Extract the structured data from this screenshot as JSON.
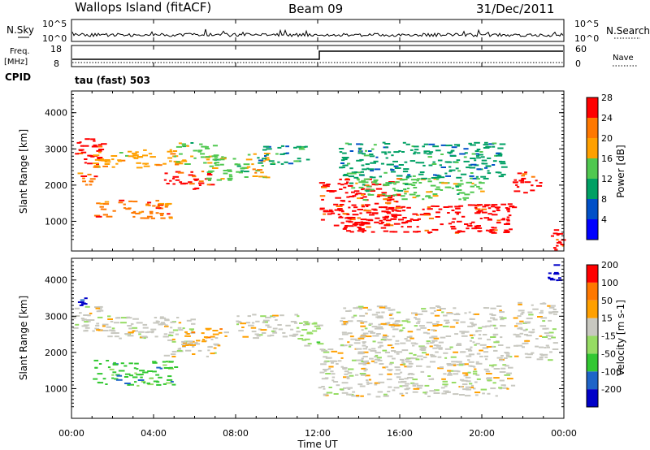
{
  "header": {
    "station": "Wallops Island (fitACF)",
    "beam": "Beam 09",
    "date": "31/Dec/2011"
  },
  "noise_panel": {
    "left_label": "N.Sky",
    "right_label": "N.Search",
    "left_ticks": [
      "10^5",
      "10^0"
    ],
    "right_ticks": [
      "10^5",
      "10^0"
    ]
  },
  "freq_panel": {
    "left_label_top": "Freq.",
    "left_label_unit": "[MHz]",
    "cpid_label": "CPID",
    "right_label": "Nave",
    "left_ticks": [
      "18",
      "8"
    ],
    "right_ticks": [
      "60",
      "0"
    ],
    "cpid_text": "tau (fast) 503"
  },
  "time_axis": {
    "label": "Time UT",
    "ticks": [
      "00:00",
      "04:00",
      "08:00",
      "12:00",
      "16:00",
      "20:00",
      "00:00"
    ]
  },
  "chart_data": [
    {
      "type": "heatmap",
      "name": "power",
      "ylabel": "Slant Range [km]",
      "x_range_hours": [
        0,
        24
      ],
      "ylim": [
        180,
        4600
      ],
      "y_ticks": [
        1000,
        2000,
        3000,
        4000
      ],
      "colorbar_label": "Power [dB]",
      "colorbar_ticks": [
        "28",
        "24",
        "20",
        "16",
        "12",
        "8",
        "4"
      ],
      "colorbar_colors": [
        "#0000ff",
        "#0050c8",
        "#00a064",
        "#50c850",
        "#ffa000",
        "#ff7800",
        "#ff0000"
      ],
      "regions": [
        {
          "t0": 0.0,
          "t1": 1.5,
          "r0": 2600,
          "r1": 3300,
          "c": 6
        },
        {
          "t0": 0.2,
          "t1": 1.2,
          "r0": 2000,
          "r1": 2400,
          "c": 5
        },
        {
          "t0": 1.0,
          "t1": 5.0,
          "r0": 1100,
          "r1": 1600,
          "c": 5
        },
        {
          "t0": 1.0,
          "t1": 5.5,
          "r0": 2500,
          "r1": 3000,
          "c": 4
        },
        {
          "t0": 4.5,
          "t1": 7.0,
          "r0": 1900,
          "r1": 2400,
          "c": 6
        },
        {
          "t0": 5.0,
          "t1": 7.0,
          "r0": 2600,
          "r1": 3200,
          "c": 3
        },
        {
          "t0": 6.5,
          "t1": 8.5,
          "r0": 2100,
          "r1": 2800,
          "c": 3
        },
        {
          "t0": 8.5,
          "t1": 9.5,
          "r0": 2200,
          "r1": 2900,
          "c": 4
        },
        {
          "t0": 9.0,
          "t1": 11.5,
          "r0": 2600,
          "r1": 3100,
          "c": 2
        },
        {
          "t0": 12.0,
          "t1": 16.0,
          "r0": 900,
          "r1": 2200,
          "c": 6
        },
        {
          "t0": 13.0,
          "t1": 21.5,
          "r0": 700,
          "r1": 1500,
          "c": 6
        },
        {
          "t0": 13.5,
          "t1": 20.0,
          "r0": 1600,
          "r1": 2200,
          "c": 3
        },
        {
          "t0": 13.0,
          "t1": 21.0,
          "r0": 2200,
          "r1": 3200,
          "c": 2
        },
        {
          "t0": 21.5,
          "t1": 22.8,
          "r0": 1800,
          "r1": 2400,
          "c": 6
        },
        {
          "t0": 23.3,
          "t1": 24.0,
          "r0": 200,
          "r1": 1000,
          "c": 6
        }
      ]
    },
    {
      "type": "heatmap",
      "name": "velocity",
      "ylabel": "Slant Range [km]",
      "x_range_hours": [
        0,
        24
      ],
      "ylim": [
        180,
        4600
      ],
      "y_ticks": [
        1000,
        2000,
        3000,
        4000
      ],
      "colorbar_label": "Velocity [m s-1]",
      "colorbar_ticks": [
        "200",
        "100",
        "50",
        "15",
        "-15",
        "-50",
        "-100",
        "-200"
      ],
      "colorbar_colors": [
        "#0000c8",
        "#1e64c8",
        "#32c832",
        "#96dc64",
        "#c8c8c0",
        "#ffa000",
        "#ff7800",
        "#ff0000"
      ],
      "regions": [
        {
          "t0": 0.0,
          "t1": 2.0,
          "r0": 2600,
          "r1": 3300,
          "c": 4
        },
        {
          "t0": 0.2,
          "t1": 0.7,
          "r0": 3300,
          "r1": 3700,
          "c": 0
        },
        {
          "t0": 1.0,
          "t1": 5.0,
          "r0": 1100,
          "r1": 1800,
          "c": 2
        },
        {
          "t0": 1.0,
          "t1": 6.0,
          "r0": 2400,
          "r1": 3000,
          "c": 4
        },
        {
          "t0": 4.5,
          "t1": 7.0,
          "r0": 1900,
          "r1": 2400,
          "c": 4
        },
        {
          "t0": 5.5,
          "t1": 7.5,
          "r0": 2200,
          "r1": 2700,
          "c": 5
        },
        {
          "t0": 8.0,
          "t1": 11.0,
          "r0": 2400,
          "r1": 3100,
          "c": 4
        },
        {
          "t0": 11.0,
          "t1": 12.0,
          "r0": 2200,
          "r1": 3000,
          "c": 3
        },
        {
          "t0": 12.0,
          "t1": 21.5,
          "r0": 800,
          "r1": 2200,
          "c": 4
        },
        {
          "t0": 13.0,
          "t1": 21.0,
          "r0": 2200,
          "r1": 3300,
          "c": 4
        },
        {
          "t0": 21.5,
          "t1": 23.5,
          "r0": 1800,
          "r1": 3400,
          "c": 4
        },
        {
          "t0": 23.2,
          "t1": 23.8,
          "r0": 3900,
          "r1": 4500,
          "c": 0
        }
      ]
    }
  ]
}
